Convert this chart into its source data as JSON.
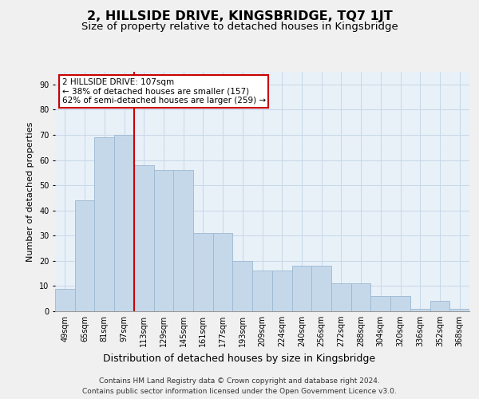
{
  "title": "2, HILLSIDE DRIVE, KINGSBRIDGE, TQ7 1JT",
  "subtitle": "Size of property relative to detached houses in Kingsbridge",
  "xlabel": "Distribution of detached houses by size in Kingsbridge",
  "ylabel": "Number of detached properties",
  "categories": [
    "49sqm",
    "65sqm",
    "81sqm",
    "97sqm",
    "113sqm",
    "129sqm",
    "145sqm",
    "161sqm",
    "177sqm",
    "193sqm",
    "209sqm",
    "224sqm",
    "240sqm",
    "256sqm",
    "272sqm",
    "288sqm",
    "304sqm",
    "320sqm",
    "336sqm",
    "352sqm",
    "368sqm"
  ],
  "bar_heights": [
    9,
    44,
    69,
    70,
    58,
    56,
    56,
    31,
    31,
    20,
    16,
    16,
    18,
    18,
    11,
    11,
    6,
    6,
    1,
    4,
    1
  ],
  "bar_color": "#c5d8ea",
  "bar_edge_color": "#9cb8d0",
  "grid_color": "#c8d8e8",
  "background_color": "#e8f0f8",
  "fig_background_color": "#f0f0f0",
  "vline_color": "#cc0000",
  "annotation_line1": "2 HILLSIDE DRIVE: 107sqm",
  "annotation_line2": "← 38% of detached houses are smaller (157)",
  "annotation_line3": "62% of semi-detached houses are larger (259) →",
  "annotation_box_color": "#ffffff",
  "annotation_box_edge": "#cc0000",
  "ylim": [
    0,
    95
  ],
  "yticks": [
    0,
    10,
    20,
    30,
    40,
    50,
    60,
    70,
    80,
    90
  ],
  "footer_line1": "Contains HM Land Registry data © Crown copyright and database right 2024.",
  "footer_line2": "Contains public sector information licensed under the Open Government Licence v3.0.",
  "title_fontsize": 11.5,
  "subtitle_fontsize": 9.5,
  "xlabel_fontsize": 9,
  "ylabel_fontsize": 8,
  "tick_fontsize": 7,
  "annotation_fontsize": 7.5,
  "footer_fontsize": 6.5
}
